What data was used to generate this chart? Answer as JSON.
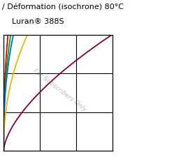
{
  "title_line1": "/ Déformation (isochrone) 80°C",
  "title_line2": "    Luran® 388S",
  "watermark": "For Subscribers Only",
  "figsize": [
    2.59,
    2.25
  ],
  "curves": [
    {
      "color": "#dd0000",
      "label": "red",
      "a": 0.04,
      "power": 2.5
    },
    {
      "color": "#00aa00",
      "label": "green",
      "a": 0.065,
      "power": 2.5
    },
    {
      "color": "#0066dd",
      "label": "blue",
      "a": 0.09,
      "power": 2.5
    },
    {
      "color": "#ddbb00",
      "label": "yellow",
      "a": 0.22,
      "power": 2.2
    },
    {
      "color": "#880033",
      "label": "darkred",
      "a": 1.0,
      "power": 1.6
    }
  ],
  "xlim": [
    0,
    1.0
  ],
  "ylim": [
    0,
    1.0
  ],
  "title_fontsize": 8.0,
  "subtitle_fontsize": 8.0,
  "background_color": "#ffffff"
}
